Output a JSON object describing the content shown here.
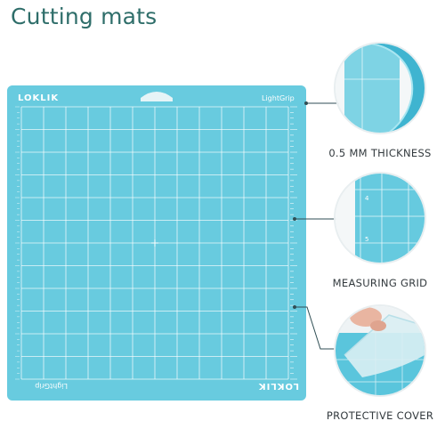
{
  "page": {
    "title": "Cutting mats"
  },
  "mat": {
    "brand": "LOKLIK",
    "model": "LightGrip",
    "brand_mirrored": "LOKLIK",
    "model_mirrored": "LightGrip",
    "color": "#61c9dd",
    "grid_color": "#ffffff"
  },
  "features": [
    {
      "label": "0.5 MM THICKNESS",
      "icon": "mat-thickness-closeup"
    },
    {
      "label": "MEASURING GRID",
      "icon": "measuring-grid-closeup"
    },
    {
      "label": "PROTECTIVE COVER",
      "icon": "protective-cover-peel"
    }
  ],
  "colors": {
    "title": "#2f6e6a",
    "connector": "#2f4e54",
    "mat": "#61c9dd"
  }
}
